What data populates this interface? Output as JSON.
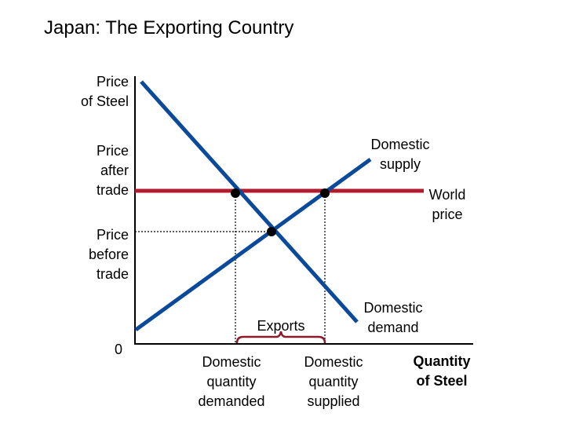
{
  "title": "Japan: The Exporting Country",
  "labels": {
    "y_axis_line1": "Price",
    "y_axis_line2": "of Steel",
    "price_after_line1": "Price",
    "price_after_line2": "after",
    "price_after_line3": "trade",
    "price_before_line1": "Price",
    "price_before_line2": "before",
    "price_before_line3": "trade",
    "origin": "0",
    "supply_line1": "Domestic",
    "supply_line2": "supply",
    "world_price_line1": "World",
    "world_price_line2": "price",
    "demand_line1": "Domestic",
    "demand_line2": "demand",
    "exports": "Exports",
    "qd_line1": "Domestic",
    "qd_line2": "quantity",
    "qd_line3": "demanded",
    "qs_line1": "Domestic",
    "qs_line2": "quantity",
    "qs_line3": "supplied",
    "x_axis_line1": "Quantity",
    "x_axis_line2": "of Steel"
  },
  "colors": {
    "curves": "#0b4a9a",
    "world_price": "#b01c2e",
    "exports_brace": "#8b1a2a",
    "axes": "#000000"
  }
}
